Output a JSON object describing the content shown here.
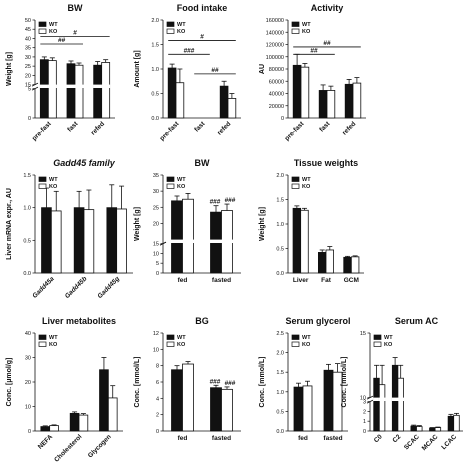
{
  "legend": {
    "wt": "WT",
    "ko": "KO"
  },
  "colors": {
    "wt": "#111111",
    "ko": "#ffffff",
    "stroke": "#111111"
  },
  "chart_data": [
    {
      "type": "bar",
      "title": "BW",
      "ylabel": "Weight [g]",
      "categories": [
        "pre-fast",
        "fast",
        "refed"
      ],
      "series": [
        {
          "name": "WT",
          "values": [
            28.5,
            26.3,
            25.5
          ],
          "errors": [
            1.5,
            1.5,
            2.0
          ]
        },
        {
          "name": "KO",
          "values": [
            28.0,
            25.5,
            27.0
          ],
          "errors": [
            1.5,
            1.2,
            1.5
          ]
        }
      ],
      "ylim": [
        0,
        50
      ],
      "axis_break": [
        5,
        15
      ],
      "yticks": [
        "0",
        "5",
        "15",
        "20",
        "25",
        "30",
        "35",
        "40",
        "45",
        "50"
      ],
      "significance": [
        {
          "label": "#",
          "from": 0,
          "to": 2,
          "y": 41
        },
        {
          "label": "##",
          "from": 0,
          "to": 1,
          "y": 37
        }
      ]
    },
    {
      "type": "bar",
      "title": "Food intake",
      "ylabel": "Amount [g]",
      "categories": [
        "pre-fast",
        "fast",
        "refed"
      ],
      "series": [
        {
          "name": "WT",
          "values": [
            1.02,
            0,
            0.65
          ],
          "errors": [
            0.08,
            0,
            0.1
          ]
        },
        {
          "name": "KO",
          "values": [
            0.72,
            0,
            0.4
          ],
          "errors": [
            0.28,
            0,
            0.1
          ]
        }
      ],
      "ylim": [
        0,
        2.0
      ],
      "yticks": [
        "0.0",
        "0.5",
        "1.0",
        "1.5",
        "2.0"
      ],
      "significance": [
        {
          "label": "#",
          "from": 0,
          "to": 2,
          "y": 1.58
        },
        {
          "label": "###",
          "from": 0,
          "to": 1,
          "y": 1.3
        },
        {
          "label": "##",
          "from": 1,
          "to": 2,
          "y": 0.9
        }
      ]
    },
    {
      "type": "bar",
      "title": "Activity",
      "ylabel": "AU",
      "categories": [
        "pre-fast",
        "fast",
        "refed"
      ],
      "series": [
        {
          "name": "WT",
          "values": [
            86000,
            45000,
            55000
          ],
          "errors": [
            18000,
            9000,
            8000
          ]
        },
        {
          "name": "KO",
          "values": [
            83000,
            45000,
            57000
          ],
          "errors": [
            6000,
            7000,
            9000
          ]
        }
      ],
      "ylim": [
        0,
        160000
      ],
      "yticks": [
        "0",
        "20000",
        "40000",
        "60000",
        "80000",
        "100000",
        "120000",
        "140000",
        "160000"
      ],
      "significance": [
        {
          "label": "##",
          "from": 0,
          "to": 2,
          "y": 116000
        },
        {
          "label": "##",
          "from": 0,
          "to": 1,
          "y": 104000
        }
      ]
    },
    {
      "type": "bar",
      "title": "Gadd45 family",
      "title_italic": true,
      "ylabel": "Liver mRNA expr., AU",
      "categories": [
        "Gadd45a",
        "Gadd45b",
        "Gadd45g"
      ],
      "categories_italic": true,
      "series": [
        {
          "name": "WT",
          "values": [
            1.0,
            1.0,
            1.0
          ],
          "errors": [
            0.3,
            0.25,
            0.35
          ]
        },
        {
          "name": "KO",
          "values": [
            0.95,
            0.97,
            0.98
          ],
          "errors": [
            0.3,
            0.3,
            0.35
          ]
        }
      ],
      "ylim": [
        0,
        1.5
      ],
      "yticks": [
        "0.0",
        "0.5",
        "1.0",
        "1.5"
      ],
      "significance": []
    },
    {
      "type": "bar",
      "title": "BW",
      "ylabel": "Weight [g]",
      "categories": [
        "fed",
        "fasted"
      ],
      "series": [
        {
          "name": "WT",
          "values": [
            27.0,
            23.5
          ],
          "errors": [
            1.5,
            2.0
          ]
        },
        {
          "name": "KO",
          "values": [
            27.5,
            24.0
          ],
          "errors": [
            1.8,
            2.0
          ]
        }
      ],
      "ylim": [
        0,
        35
      ],
      "axis_break": [
        15,
        15
      ],
      "yticks": [
        "0",
        "5",
        "10",
        "15",
        "20",
        "25",
        "30",
        "35"
      ],
      "significance": [],
      "bar_labels": [
        {
          "label": "###",
          "category": 1,
          "series": 0
        },
        {
          "label": "###",
          "category": 1,
          "series": 1
        }
      ]
    },
    {
      "type": "bar",
      "title": "Tissue weights",
      "ylabel": "Weight [g]",
      "categories": [
        "Liver",
        "Fat",
        "GCM"
      ],
      "series": [
        {
          "name": "WT",
          "values": [
            1.32,
            0.42,
            0.32
          ],
          "errors": [
            0.05,
            0.05,
            0.02
          ]
        },
        {
          "name": "KO",
          "values": [
            1.28,
            0.47,
            0.33
          ],
          "errors": [
            0.04,
            0.07,
            0.02
          ]
        }
      ],
      "ylim": [
        0,
        2.0
      ],
      "yticks": [
        "0.0",
        "0.5",
        "1.0",
        "1.5",
        "2.0"
      ],
      "significance": []
    },
    {
      "type": "bar",
      "title": "Liver metabolites",
      "ylabel": "Conc. [µmol/g]",
      "categories": [
        "NEFA",
        "Cholesterol",
        "Glycogen"
      ],
      "series": [
        {
          "name": "WT",
          "values": [
            1.8,
            7.2,
            25.0
          ],
          "errors": [
            0.3,
            0.6,
            5.0
          ]
        },
        {
          "name": "KO",
          "values": [
            2.2,
            6.5,
            13.5
          ],
          "errors": [
            0.3,
            0.6,
            5.0
          ]
        }
      ],
      "ylim": [
        0,
        40
      ],
      "yticks": [
        "0",
        "10",
        "20",
        "30",
        "40"
      ],
      "significance": []
    },
    {
      "type": "bar",
      "title": "BG",
      "ylabel": "Conc. [mmol/L]",
      "categories": [
        "fed",
        "fasted"
      ],
      "series": [
        {
          "name": "WT",
          "values": [
            7.5,
            5.3
          ],
          "errors": [
            0.5,
            0.3
          ]
        },
        {
          "name": "KO",
          "values": [
            8.2,
            5.1
          ],
          "errors": [
            0.3,
            0.3
          ]
        }
      ],
      "ylim": [
        0,
        12
      ],
      "yticks": [
        "0",
        "2",
        "4",
        "6",
        "8",
        "10",
        "12"
      ],
      "significance": [],
      "bar_labels": [
        {
          "label": "###",
          "category": 1,
          "series": 0
        },
        {
          "label": "###",
          "category": 1,
          "series": 1
        }
      ]
    },
    {
      "type": "bar",
      "title": "Serum glycerol",
      "ylabel": "Conc. [mmol/L]",
      "categories": [
        "fed",
        "fasted"
      ],
      "series": [
        {
          "name": "WT",
          "values": [
            1.12,
            1.55
          ],
          "errors": [
            0.1,
            0.15
          ]
        },
        {
          "name": "KO",
          "values": [
            1.15,
            1.5
          ],
          "errors": [
            0.12,
            0.22
          ]
        }
      ],
      "ylim": [
        0,
        2.5
      ],
      "yticks": [
        "0.0",
        "0.5",
        "1.0",
        "1.5",
        "2.0",
        "2.5"
      ],
      "significance": []
    },
    {
      "type": "bar",
      "title": "Serum AC",
      "ylabel": "Conc. [mmol/L]",
      "categories": [
        "C0",
        "C2",
        "SCAC",
        "MCAC",
        "LCAC"
      ],
      "series": [
        {
          "name": "WT",
          "values": [
            11.5,
            12.5,
            0.5,
            0.3,
            1.5
          ],
          "errors": [
            1.0,
            0.6,
            0.1,
            0.05,
            0.2
          ]
        },
        {
          "name": "KO",
          "values": [
            11.0,
            11.5,
            0.45,
            0.35,
            1.6
          ],
          "errors": [
            1.5,
            1.0,
            0.1,
            0.05,
            0.2
          ]
        }
      ],
      "ylim": [
        0,
        15
      ],
      "axis_break": [
        3,
        10
      ],
      "yticks": [
        "0",
        "1",
        "2",
        "3",
        "10",
        "15"
      ],
      "significance": []
    }
  ]
}
